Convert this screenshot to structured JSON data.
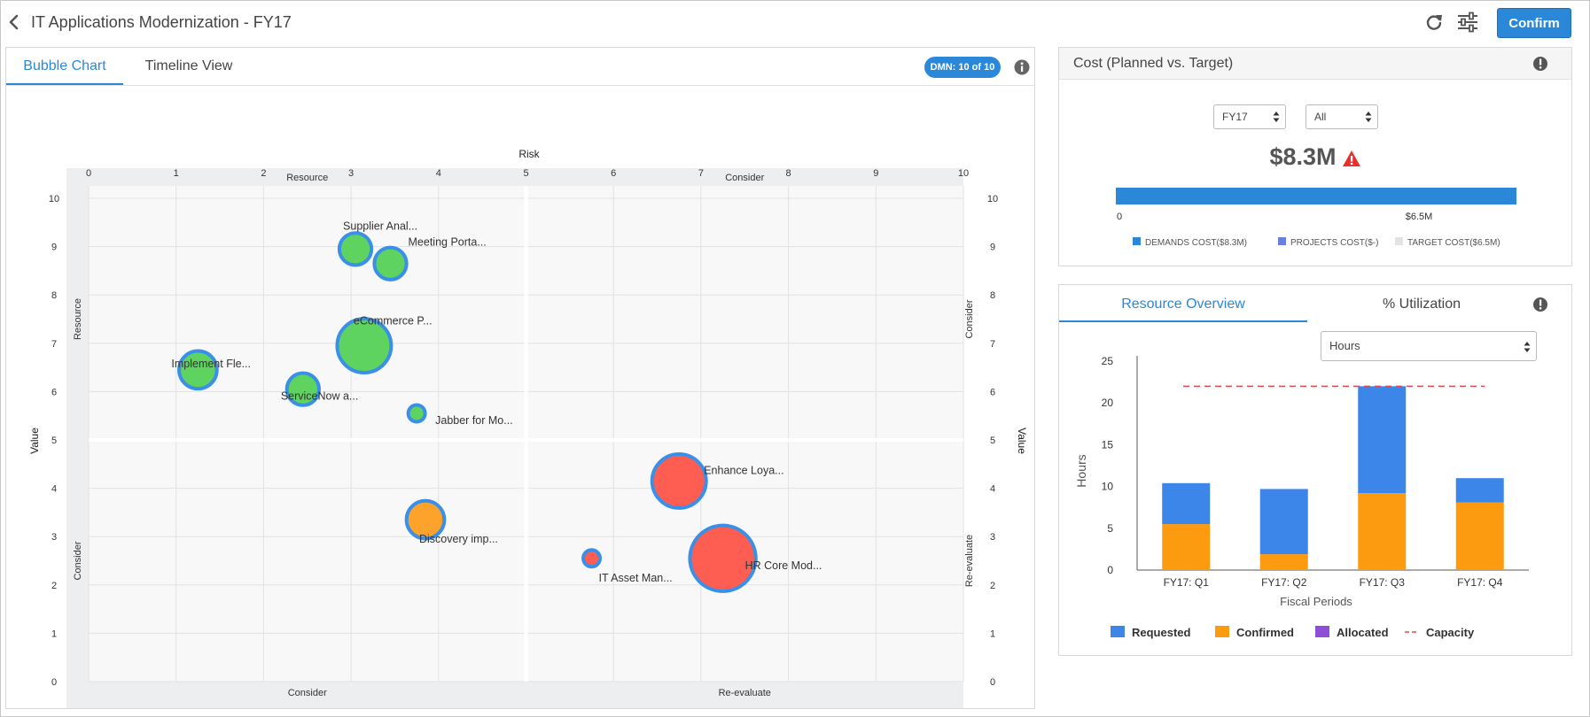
{
  "header": {
    "title": "IT Applications Modernization - FY17",
    "confirm_label": "Confirm",
    "icons": [
      "chevron-left-icon",
      "refresh-icon",
      "sliders-icon"
    ]
  },
  "left_panel": {
    "tabs": [
      {
        "label": "Bubble Chart",
        "active": true
      },
      {
        "label": "Timeline View",
        "active": false
      }
    ],
    "badge": "DMN: 10 of 10"
  },
  "cost_panel": {
    "title": "Cost (Planned vs. Target)",
    "year_select": "FY17",
    "filter_select": "All",
    "total": "$8.3M",
    "bar": {
      "start_label": "0",
      "end_label": "$6.5M",
      "fill_fraction": 1.0,
      "color": "#2b88d9"
    },
    "legend": [
      {
        "label": "DEMANDS COST($8.3M)",
        "color": "#2b88d9"
      },
      {
        "label": "PROJECTS COST($-)",
        "color": "#6a7fe0"
      },
      {
        "label": "TARGET COST($6.5M)",
        "color": "#e3e3e3"
      }
    ]
  },
  "resource_panel": {
    "tabs": [
      {
        "label": "Resource Overview",
        "active": true
      },
      {
        "label": "% Utilization",
        "active": false
      }
    ],
    "unit_select": "Hours"
  },
  "chart_data": [
    {
      "type": "scatter",
      "subtype": "bubble",
      "xlabel": "Risk",
      "ylabel": "Value",
      "xlim": [
        0,
        10
      ],
      "ylim": [
        0,
        10
      ],
      "xticks": [
        "0",
        "1",
        "2",
        "3",
        "4",
        "5",
        "6",
        "7",
        "8",
        "9",
        "10"
      ],
      "yticks": [
        "0",
        "1",
        "2",
        "3",
        "4",
        "5",
        "6",
        "7",
        "8",
        "9",
        "10"
      ],
      "quadrant_labels": {
        "top": [
          "Resource",
          "Consider"
        ],
        "bottom": [
          "Consider",
          "Re-evaluate"
        ],
        "left": [
          "Resource",
          "Consider"
        ],
        "right": [
          "Consider",
          "Re-evaluate"
        ]
      },
      "grid": true,
      "colors": {
        "green": "#5fd35f",
        "red": "#fd5e51",
        "orange": "#fda32c",
        "border": "#3a8fe8"
      },
      "points": [
        {
          "label": "Supplier Anal...",
          "x": 3.05,
          "y": 8.95,
          "size": 2,
          "color": "green"
        },
        {
          "label": "Meeting Porta...",
          "x": 3.45,
          "y": 8.65,
          "size": 2,
          "color": "green"
        },
        {
          "label": "eCommerce P...",
          "x": 3.15,
          "y": 6.95,
          "size": 7,
          "color": "green"
        },
        {
          "label": "Implement Fle...",
          "x": 1.25,
          "y": 6.45,
          "size": 3,
          "color": "green"
        },
        {
          "label": "ServiceNow a...",
          "x": 2.45,
          "y": 6.05,
          "size": 2,
          "color": "green"
        },
        {
          "label": "Jabber for Mo...",
          "x": 3.75,
          "y": 5.55,
          "size": 0.3,
          "color": "green"
        },
        {
          "label": "Enhance Loya...",
          "x": 6.75,
          "y": 4.15,
          "size": 7,
          "color": "red"
        },
        {
          "label": "Discovery imp...",
          "x": 3.85,
          "y": 3.35,
          "size": 3,
          "color": "orange"
        },
        {
          "label": "IT Asset Man...",
          "x": 5.75,
          "y": 2.55,
          "size": 0.3,
          "color": "red"
        },
        {
          "label": "HR Core Mod...",
          "x": 7.25,
          "y": 2.55,
          "size": 11,
          "color": "red"
        }
      ]
    },
    {
      "type": "bar",
      "stacked": true,
      "xlabel": "Fiscal Periods",
      "ylabel": "Hours",
      "ylim": [
        0,
        25
      ],
      "yticks": [
        "0",
        "5",
        "10",
        "15",
        "20",
        "25"
      ],
      "categories": [
        "FY17: Q1",
        "FY17: Q2",
        "FY17: Q3",
        "FY17: Q4"
      ],
      "series": [
        {
          "name": "Confirmed",
          "color": "#fd9b10",
          "values": [
            5.5,
            1.9,
            9.2,
            8.1
          ]
        },
        {
          "name": "Requested",
          "color": "#3b86e8",
          "values": [
            4.9,
            7.8,
            12.8,
            2.9
          ]
        },
        {
          "name": "Allocated",
          "color": "#8c4fd6",
          "values": [
            0,
            0,
            0,
            0
          ]
        }
      ],
      "capacity": {
        "name": "Capacity",
        "value": 22,
        "color": "#e8484d"
      },
      "legend_order": [
        "Requested",
        "Confirmed",
        "Allocated",
        "Capacity"
      ]
    }
  ]
}
